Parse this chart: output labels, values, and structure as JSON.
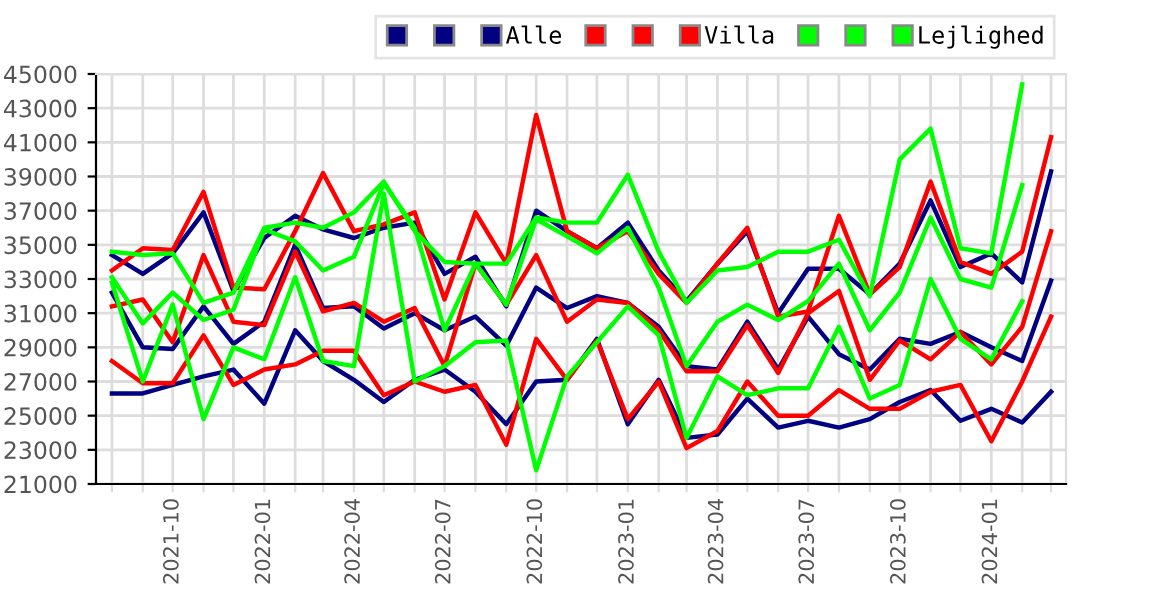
{
  "chart_data": {
    "type": "line",
    "x": [
      "2021-08",
      "2021-09",
      "2021-10",
      "2021-11",
      "2021-12",
      "2022-01",
      "2022-02",
      "2022-03",
      "2022-04",
      "2022-05",
      "2022-06",
      "2022-07",
      "2022-08",
      "2022-09",
      "2022-10",
      "2022-11",
      "2022-12",
      "2023-01",
      "2023-02",
      "2023-03",
      "2023-04",
      "2023-05",
      "2023-06",
      "2023-07",
      "2023-08",
      "2023-09",
      "2023-10",
      "2023-11",
      "2023-12",
      "2024-01",
      "2024-02",
      "2024-03"
    ],
    "series": [
      {
        "color": "#000080",
        "values": [
          26300,
          26300,
          26800,
          27300,
          27700,
          25700,
          30000,
          28200,
          27100,
          25800,
          27100,
          27700,
          26400,
          24500,
          27000,
          27100,
          29500,
          24500,
          27100,
          23700,
          23900,
          26000,
          24300,
          24700,
          24300,
          24800,
          25800,
          26500,
          24700,
          25400,
          24600,
          26400
        ]
      },
      {
        "color": "#000080",
        "values": [
          32200,
          29000,
          28900,
          31400,
          29200,
          30500,
          35000,
          31300,
          31400,
          30100,
          31000,
          30000,
          30800,
          29100,
          32500,
          31300,
          32000,
          31600,
          30200,
          27900,
          27700,
          30500,
          27700,
          30800,
          28600,
          27700,
          29500,
          29200,
          29900,
          29000,
          28200,
          32900
        ]
      },
      {
        "name": "Alle",
        "color": "#000080",
        "values": [
          34400,
          33300,
          34500,
          36900,
          32300,
          35400,
          36700,
          35900,
          35400,
          36000,
          36300,
          33300,
          34300,
          31400,
          37000,
          35800,
          34800,
          36300,
          33500,
          31700,
          33900,
          35800,
          31000,
          33600,
          33600,
          32100,
          33900,
          37600,
          33700,
          34500,
          32800,
          39300
        ]
      },
      {
        "color": "#ff0000",
        "values": [
          28200,
          26900,
          26900,
          29700,
          26800,
          27700,
          28000,
          28800,
          28800,
          26200,
          27000,
          26400,
          26800,
          23300,
          29500,
          27100,
          29400,
          24800,
          27000,
          23100,
          24100,
          27000,
          25000,
          25000,
          26500,
          25400,
          25400,
          26400,
          26800,
          23500,
          27000,
          30800
        ]
      },
      {
        "color": "#ff0000",
        "values": [
          31400,
          31800,
          29300,
          34400,
          30500,
          30300,
          34600,
          31100,
          31600,
          30500,
          31300,
          27900,
          33900,
          31500,
          34400,
          30500,
          31800,
          31600,
          30000,
          27600,
          27600,
          30300,
          27500,
          31000,
          32300,
          27100,
          29400,
          28300,
          29900,
          28000,
          30200,
          35800
        ]
      },
      {
        "name": "Villa",
        "color": "#ff0000",
        "values": [
          33500,
          34800,
          34700,
          38100,
          32500,
          32400,
          35800,
          39200,
          35800,
          36200,
          36900,
          31800,
          36900,
          33900,
          42600,
          35800,
          34800,
          35800,
          33300,
          31600,
          33900,
          36000,
          30800,
          31100,
          36700,
          32100,
          33700,
          38700,
          34000,
          33300,
          34600,
          41300
        ]
      },
      {
        "color": "#00ff00",
        "values": [
          32800,
          27000,
          31500,
          24800,
          29000,
          28300,
          33100,
          28200,
          27900,
          38000,
          27000,
          27900,
          29300,
          29400,
          21800,
          27300,
          29300,
          31400,
          29700,
          23700,
          27300,
          26200,
          26600,
          26600,
          30200,
          26000,
          26800,
          33000,
          29500,
          28300,
          31700,
          null
        ]
      },
      {
        "color": "#00ff00",
        "values": [
          33100,
          30400,
          32200,
          30600,
          31200,
          35900,
          35200,
          33500,
          34300,
          38600,
          36000,
          30000,
          33900,
          31500,
          36500,
          35500,
          34500,
          36000,
          32500,
          27900,
          30500,
          31500,
          30600,
          31700,
          33900,
          30000,
          32200,
          36600,
          33000,
          32500,
          38500,
          null
        ]
      },
      {
        "name": "Lejlighed",
        "color": "#00ff00",
        "values": [
          34600,
          34400,
          34500,
          31600,
          32200,
          36000,
          36300,
          36000,
          36900,
          38700,
          35800,
          34000,
          33900,
          33900,
          36600,
          36300,
          36300,
          39100,
          34600,
          31600,
          33500,
          33700,
          34600,
          34600,
          35300,
          32000,
          40000,
          41800,
          34800,
          34500,
          44400,
          null
        ]
      }
    ],
    "xlim": [
      "2021-07-16",
      "2024-03-16"
    ],
    "xticks": [
      {
        "value": "2021-08",
        "label": null
      },
      {
        "value": "2021-09",
        "label": null
      },
      {
        "value": "2021-10",
        "label": "2021-10"
      },
      {
        "value": "2021-11",
        "label": null
      },
      {
        "value": "2021-12",
        "label": null
      },
      {
        "value": "2022-01",
        "label": "2022-01"
      },
      {
        "value": "2022-02",
        "label": null
      },
      {
        "value": "2022-03",
        "label": null
      },
      {
        "value": "2022-04",
        "label": "2022-04"
      },
      {
        "value": "2022-05",
        "label": null
      },
      {
        "value": "2022-06",
        "label": null
      },
      {
        "value": "2022-07",
        "label": "2022-07"
      },
      {
        "value": "2022-08",
        "label": null
      },
      {
        "value": "2022-09",
        "label": null
      },
      {
        "value": "2022-10",
        "label": "2022-10"
      },
      {
        "value": "2022-11",
        "label": null
      },
      {
        "value": "2022-12",
        "label": null
      },
      {
        "value": "2023-01",
        "label": "2023-01"
      },
      {
        "value": "2023-02",
        "label": null
      },
      {
        "value": "2023-03",
        "label": null
      },
      {
        "value": "2023-04",
        "label": "2023-04"
      },
      {
        "value": "2023-05",
        "label": null
      },
      {
        "value": "2023-06",
        "label": null
      },
      {
        "value": "2023-07",
        "label": "2023-07"
      },
      {
        "value": "2023-08",
        "label": null
      },
      {
        "value": "2023-09",
        "label": null
      },
      {
        "value": "2023-10",
        "label": "2023-10"
      },
      {
        "value": "2023-11",
        "label": null
      },
      {
        "value": "2023-12",
        "label": null
      },
      {
        "value": "2024-01",
        "label": "2024-01"
      },
      {
        "value": "2024-02",
        "label": null
      },
      {
        "value": "2024-03",
        "label": null
      }
    ],
    "ylim": [
      21000,
      45000
    ],
    "yticks": [
      21000,
      23000,
      25000,
      27000,
      29000,
      31000,
      33000,
      35000,
      37000,
      39000,
      41000,
      43000,
      45000
    ],
    "grid": true,
    "legend": "top right",
    "marker": "none",
    "line_style": "solid"
  }
}
